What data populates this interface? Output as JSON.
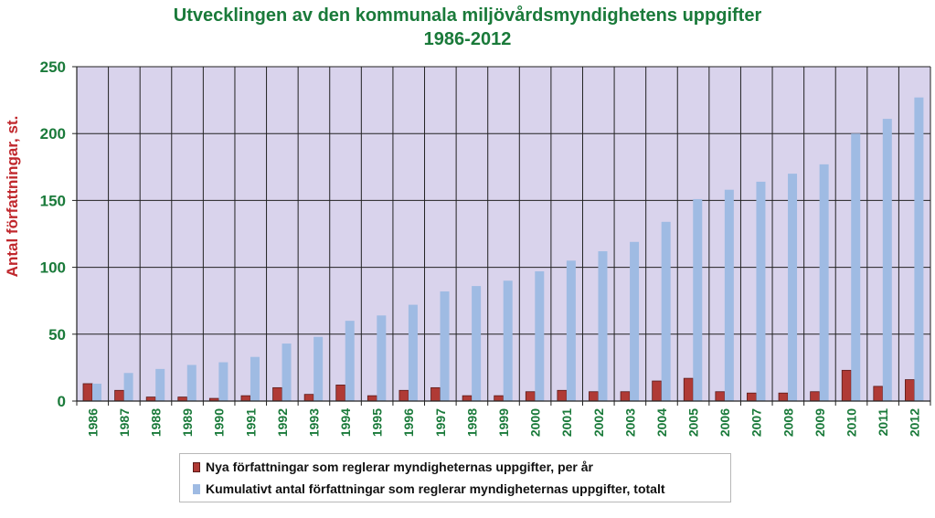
{
  "colors": {
    "background": "#d9d3ec",
    "series_new": "#b03a35",
    "series_cumulative": "#9fbbe3",
    "title": "#1a7a3a",
    "axis_text": "#1a7a3a",
    "ylabel": "#c0282d"
  },
  "chart_data": {
    "type": "bar",
    "title": "Utvecklingen av den kommunala miljövårdsmyndighetens uppgifter",
    "subtitle": "1986-2012",
    "xlabel": "",
    "ylabel": "Antal författningar, st.",
    "ylim": [
      0,
      250
    ],
    "yticks": [
      0,
      50,
      100,
      150,
      200,
      250
    ],
    "grid": true,
    "legend": "bottom",
    "categories": [
      "1986",
      "1987",
      "1988",
      "1989",
      "1990",
      "1991",
      "1992",
      "1993",
      "1994",
      "1995",
      "1996",
      "1997",
      "1998",
      "1999",
      "2000",
      "2001",
      "2002",
      "2003",
      "2004",
      "2005",
      "2006",
      "2007",
      "2008",
      "2009",
      "2010",
      "2011",
      "2012"
    ],
    "series": [
      {
        "name": "Nya författningar som reglerar myndigheternas uppgifter, per år",
        "values": [
          13,
          8,
          3,
          3,
          2,
          4,
          10,
          5,
          12,
          4,
          8,
          10,
          4,
          4,
          7,
          8,
          7,
          7,
          15,
          17,
          7,
          6,
          6,
          7,
          23,
          11,
          16
        ]
      },
      {
        "name": "Kumulativt antal författningar som reglerar myndigheternas uppgifter, totalt",
        "values": [
          13,
          21,
          24,
          27,
          29,
          33,
          43,
          48,
          60,
          64,
          72,
          82,
          86,
          90,
          97,
          105,
          112,
          119,
          134,
          151,
          158,
          164,
          170,
          177,
          200,
          211,
          227
        ]
      }
    ]
  }
}
